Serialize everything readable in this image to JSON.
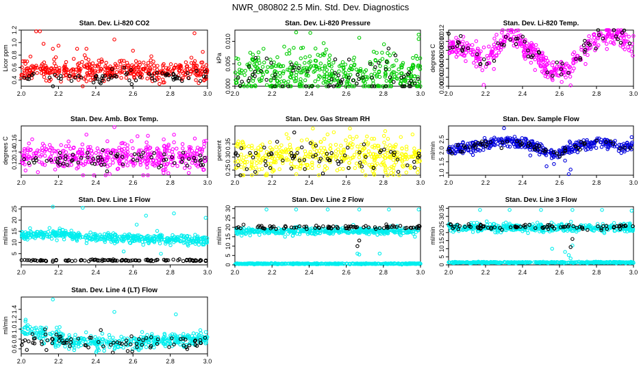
{
  "figure_title": "NWR_080802  2.5 Min. Std. Dev. Diagnostics",
  "chart_data": [
    {
      "id": "co2",
      "type": "scatter",
      "title": "Stan. Dev. Li-820 CO2",
      "xlabel": "",
      "ylabel": "Licor ppm",
      "xlim": [
        2.0,
        3.0
      ],
      "ylim": [
        0.3,
        1.2
      ],
      "xticks": [
        "2.0",
        "2.2",
        "2.4",
        "2.6",
        "2.8",
        "3.0"
      ],
      "yticks": [
        "0.4",
        "0.6",
        "0.8",
        "1.0",
        "1.2"
      ],
      "colors": {
        "main": "#ff0000",
        "secondary": "#000000"
      },
      "series": [
        {
          "name": "main",
          "color": "#ff0000",
          "n": 420,
          "level": 0.55,
          "spread": 0.08,
          "outliers": [
            [
              2.08,
              1.18
            ],
            [
              2.1,
              1.18
            ],
            [
              2.12,
              0.98
            ],
            [
              2.17,
              0.9
            ],
            [
              2.2,
              0.95
            ],
            [
              2.3,
              0.9
            ],
            [
              2.5,
              1.05
            ],
            [
              2.93,
              1.15
            ],
            [
              2.35,
              0.9
            ],
            [
              2.6,
              0.87
            ],
            [
              2.33,
              0.3
            ]
          ]
        },
        {
          "name": "secondary",
          "color": "#000000",
          "n": 70,
          "level": 0.45,
          "spread": 0.05,
          "outliers": []
        }
      ]
    },
    {
      "id": "pressure",
      "type": "scatter",
      "title": "Stan. Dev. Li-820 Pressure",
      "xlabel": "",
      "ylabel": "kPa",
      "xlim": [
        2.0,
        3.0
      ],
      "ylim": [
        0.0,
        0.0125
      ],
      "xticks": [
        "2.0",
        "2.2",
        "2.4",
        "2.6",
        "2.8",
        "3.0"
      ],
      "yticks": [
        "0.000",
        "0.005",
        "0.010"
      ],
      "colors": {
        "main": "#00cc00",
        "secondary": "#000000"
      },
      "series": [
        {
          "name": "main",
          "color": "#00cc00",
          "n": 420,
          "level": 0.003,
          "spread": 0.0025,
          "outliers": [
            [
              2.33,
              0.012
            ],
            [
              2.67,
              0.0108
            ],
            [
              2.99,
              0.0115
            ]
          ]
        },
        {
          "name": "secondary",
          "color": "#000000",
          "n": 70,
          "level": 0.002,
          "spread": 0.0025,
          "outliers": []
        }
      ]
    },
    {
      "id": "temp",
      "type": "scatter",
      "title": "Stan. Dev. Li-820 Temp.",
      "xlabel": "",
      "ylabel": "degrees C",
      "xlim": [
        2.0,
        3.0
      ],
      "ylim": [
        0.0,
        0.0125
      ],
      "xticks": [
        "2.0",
        "2.2",
        "2.4",
        "2.6",
        "2.8",
        "3.0"
      ],
      "yticks": [
        "0.000",
        "0.002",
        "0.004",
        "0.006",
        "0.008",
        "0.010",
        "0.012"
      ],
      "colors": {
        "main": "#ff00ff",
        "secondary": "#000000"
      },
      "series": [
        {
          "name": "main",
          "color": "#ff00ff",
          "n": 420,
          "level": 0.008,
          "spread": 0.0012,
          "wave": [
            [
              2.0,
              0.009
            ],
            [
              2.1,
              0.008
            ],
            [
              2.2,
              0.006
            ],
            [
              2.33,
              0.0115
            ],
            [
              2.45,
              0.008
            ],
            [
              2.55,
              0.003
            ],
            [
              2.65,
              0.004
            ],
            [
              2.75,
              0.009
            ],
            [
              2.85,
              0.0115
            ],
            [
              2.92,
              0.0115
            ],
            [
              3.0,
              0.009
            ]
          ],
          "outliers": [
            [
              2.19,
              0.0003
            ],
            [
              2.66,
              0.0002
            ]
          ]
        },
        {
          "name": "secondary",
          "color": "#000000",
          "n": 60,
          "level": 0.008,
          "spread": 0.0012,
          "wave": [
            [
              2.0,
              0.009
            ],
            [
              2.1,
              0.008
            ],
            [
              2.2,
              0.006
            ],
            [
              2.33,
              0.0115
            ],
            [
              2.45,
              0.008
            ],
            [
              2.55,
              0.003
            ],
            [
              2.65,
              0.004
            ],
            [
              2.75,
              0.009
            ],
            [
              2.85,
              0.0115
            ],
            [
              2.92,
              0.0115
            ],
            [
              3.0,
              0.009
            ]
          ],
          "outliers": []
        }
      ]
    },
    {
      "id": "boxtemp",
      "type": "scatter",
      "title": "Stan. Dev. Amb. Box Temp.",
      "xlabel": "",
      "ylabel": "degrees C",
      "xlim": [
        2.0,
        3.0
      ],
      "ylim": [
        0.1,
        0.185
      ],
      "xticks": [
        "2.0",
        "2.2",
        "2.4",
        "2.6",
        "2.8",
        "3.0"
      ],
      "yticks": [
        "0.12",
        "0.14",
        "0.16"
      ],
      "colors": {
        "main": "#ff00ff",
        "secondary": "#000000"
      },
      "series": [
        {
          "name": "main",
          "color": "#ff00ff",
          "n": 420,
          "level": 0.132,
          "spread": 0.012,
          "outliers": [
            [
              2.5,
              0.183
            ],
            [
              2.35,
              0.17
            ],
            [
              2.68,
              0.168
            ]
          ]
        },
        {
          "name": "secondary",
          "color": "#000000",
          "n": 70,
          "level": 0.128,
          "spread": 0.008,
          "outliers": []
        }
      ]
    },
    {
      "id": "rh",
      "type": "scatter",
      "title": "Stan. Dev. Gas Stream RH",
      "xlabel": "",
      "ylabel": "percent",
      "xlim": [
        2.0,
        3.0
      ],
      "ylim": [
        0.23,
        0.42
      ],
      "xticks": [
        "2.0",
        "2.2",
        "2.4",
        "2.6",
        "2.8",
        "3.0"
      ],
      "yticks": [
        "0.25",
        "0.30",
        "0.35"
      ],
      "colors": {
        "main": "#ffff00",
        "secondary": "#000000"
      },
      "series": [
        {
          "name": "main",
          "color": "#ffff00",
          "n": 420,
          "level": 0.3,
          "spread": 0.035,
          "outliers": [
            [
              2.42,
              0.41
            ],
            [
              2.62,
              0.41
            ],
            [
              2.81,
              0.4
            ]
          ]
        },
        {
          "name": "secondary",
          "color": "#000000",
          "n": 70,
          "level": 0.3,
          "spread": 0.03,
          "outliers": [
            [
              2.32,
              0.395
            ]
          ]
        }
      ]
    },
    {
      "id": "sampleflow",
      "type": "scatter",
      "title": "Stan. Dev. Sample Flow",
      "xlabel": "",
      "ylabel": "ml/min",
      "xlim": [
        2.0,
        3.0
      ],
      "ylim": [
        0.9,
        3.1
      ],
      "xticks": [
        "2.0",
        "2.2",
        "2.4",
        "2.6",
        "2.8",
        "3.0"
      ],
      "yticks": [
        "1.0",
        "1.5",
        "2.0",
        "2.5"
      ],
      "colors": {
        "main": "#0000dd",
        "secondary": "#000000"
      },
      "series": [
        {
          "name": "main",
          "color": "#0000dd",
          "n": 420,
          "level": 2.1,
          "spread": 0.12,
          "wave": [
            [
              2.0,
              2.0
            ],
            [
              2.15,
              2.2
            ],
            [
              2.3,
              2.45
            ],
            [
              2.42,
              2.3
            ],
            [
              2.5,
              2.05
            ],
            [
              2.58,
              1.85
            ],
            [
              2.65,
              2.05
            ],
            [
              2.75,
              2.35
            ],
            [
              2.85,
              2.3
            ],
            [
              2.95,
              2.15
            ],
            [
              3.0,
              2.2
            ]
          ],
          "outliers": [
            [
              2.3,
              3.0
            ],
            [
              2.53,
              1.3
            ],
            [
              2.57,
              1.4
            ],
            [
              2.65,
              0.95
            ],
            [
              2.66,
              1.15
            ],
            [
              2.63,
              1.55
            ],
            [
              2.99,
              2.6
            ]
          ]
        },
        {
          "name": "secondary",
          "color": "#000000",
          "n": 60,
          "level": 2.1,
          "spread": 0.1,
          "wave": [
            [
              2.0,
              2.0
            ],
            [
              2.15,
              2.2
            ],
            [
              2.3,
              2.45
            ],
            [
              2.42,
              2.3
            ],
            [
              2.5,
              2.05
            ],
            [
              2.58,
              1.85
            ],
            [
              2.65,
              2.05
            ],
            [
              2.75,
              2.35
            ],
            [
              2.85,
              2.3
            ],
            [
              2.95,
              2.15
            ],
            [
              3.0,
              2.2
            ]
          ],
          "outliers": []
        }
      ]
    },
    {
      "id": "line1",
      "type": "scatter",
      "title": "Stan. Dev. Line 1 Flow",
      "xlabel": "",
      "ylabel": "ml/min",
      "xlim": [
        2.0,
        3.0
      ],
      "ylim": [
        0,
        26
      ],
      "xticks": [
        "2.0",
        "2.2",
        "2.4",
        "2.6",
        "2.8",
        "3.0"
      ],
      "yticks": [
        "5",
        "10",
        "15",
        "20",
        "25"
      ],
      "colors": {
        "main": "#00eeee",
        "secondary": "#000000"
      },
      "series": [
        {
          "name": "main",
          "color": "#00eeee",
          "n": 460,
          "level": 12.5,
          "spread": 1.0,
          "wave": [
            [
              2.0,
              13
            ],
            [
              2.2,
              14
            ],
            [
              2.3,
              13
            ],
            [
              2.5,
              12
            ],
            [
              2.7,
              11.5
            ],
            [
              3.0,
              11
            ]
          ],
          "outliers": [
            [
              2.17,
              26
            ],
            [
              2.33,
              25.5
            ],
            [
              2.67,
              22
            ],
            [
              2.82,
              23
            ],
            [
              2.99,
              21
            ],
            [
              2.55,
              6
            ],
            [
              2.62,
              18
            ],
            [
              2.75,
              5
            ]
          ]
        },
        {
          "name": "secondary",
          "color": "#000000",
          "n": 110,
          "level": 2.0,
          "spread": 0.2,
          "outliers": []
        }
      ]
    },
    {
      "id": "line2",
      "type": "scatter",
      "title": "Stan. Dev. Line 2 Flow",
      "xlabel": "",
      "ylabel": "ml/min",
      "xlim": [
        2.0,
        3.0
      ],
      "ylim": [
        0,
        31
      ],
      "xticks": [
        "2.0",
        "2.2",
        "2.4",
        "2.6",
        "2.8",
        "3.0"
      ],
      "yticks": [
        "0",
        "5",
        "10",
        "15",
        "20",
        "25",
        "30"
      ],
      "colors": {
        "main": "#00eeee",
        "secondary": "#000000"
      },
      "series": [
        {
          "name": "main",
          "color": "#00eeee",
          "n": 420,
          "level": 18,
          "spread": 0.8,
          "outliers": [
            [
              2.17,
              29.5
            ],
            [
              2.33,
              29.5
            ],
            [
              2.5,
              29.5
            ],
            [
              2.67,
              29.5
            ],
            [
              2.83,
              29.5
            ],
            [
              2.99,
              29.5
            ],
            [
              2.27,
              15
            ],
            [
              2.66,
              6
            ],
            [
              2.67,
              5.5
            ],
            [
              2.78,
              6
            ],
            [
              2.97,
              15
            ]
          ]
        },
        {
          "name": "base",
          "color": "#00eeee",
          "n": 420,
          "level": 0.6,
          "spread": 0.15,
          "outliers": []
        },
        {
          "name": "secondary",
          "color": "#000000",
          "n": 80,
          "level": 20,
          "spread": 0.6,
          "outliers": [
            [
              2.66,
              10
            ],
            [
              2.67,
              13
            ]
          ]
        }
      ]
    },
    {
      "id": "line3",
      "type": "scatter",
      "title": "Stan. Dev. Line 3 Flow",
      "xlabel": "",
      "ylabel": "ml/min",
      "xlim": [
        2.0,
        3.0
      ],
      "ylim": [
        0,
        36
      ],
      "xticks": [
        "2.0",
        "2.2",
        "2.4",
        "2.6",
        "2.8",
        "3.0"
      ],
      "yticks": [
        "0",
        "5",
        "10",
        "15",
        "20",
        "25",
        "30",
        "35"
      ],
      "colors": {
        "main": "#00eeee",
        "secondary": "#000000"
      },
      "series": [
        {
          "name": "main",
          "color": "#00eeee",
          "n": 420,
          "level": 23,
          "spread": 1.2,
          "outliers": [
            [
              2.17,
              34
            ],
            [
              2.33,
              34
            ],
            [
              2.5,
              34
            ],
            [
              2.67,
              34
            ],
            [
              2.83,
              34
            ],
            [
              2.99,
              33.5
            ],
            [
              2.56,
              10
            ],
            [
              2.63,
              8
            ],
            [
              2.65,
              6
            ],
            [
              2.67,
              12
            ],
            [
              2.66,
              4
            ]
          ]
        },
        {
          "name": "base",
          "color": "#00eeee",
          "n": 420,
          "level": 1.5,
          "spread": 0.2,
          "outliers": []
        },
        {
          "name": "secondary",
          "color": "#000000",
          "n": 80,
          "level": 23.5,
          "spread": 0.8,
          "outliers": [
            [
              2.66,
              11
            ],
            [
              2.67,
              16
            ]
          ]
        }
      ]
    },
    {
      "id": "line4",
      "type": "scatter",
      "title": "Stan. Dev. Line 4 (LT) Flow",
      "xlabel": "",
      "ylabel": "ml/min",
      "xlim": [
        2.0,
        3.0
      ],
      "ylim": [
        0.5,
        1.65
      ],
      "xticks": [
        "2.0",
        "2.2",
        "2.4",
        "2.6",
        "2.8",
        "3.0"
      ],
      "yticks": [
        "0.6",
        "0.8",
        "1.0",
        "1.2",
        "1.4"
      ],
      "colors": {
        "main": "#00eeee",
        "secondary": "#000000"
      },
      "series": [
        {
          "name": "main",
          "color": "#00eeee",
          "n": 420,
          "level": 0.75,
          "spread": 0.08,
          "wave": [
            [
              2.0,
              1.0
            ],
            [
              2.08,
              0.95
            ],
            [
              2.15,
              0.82
            ],
            [
              2.3,
              0.75
            ],
            [
              2.5,
              0.72
            ],
            [
              2.7,
              0.75
            ],
            [
              2.9,
              0.8
            ],
            [
              3.0,
              0.85
            ]
          ],
          "outliers": [
            [
              2.17,
              1.6
            ],
            [
              2.5,
              1.35
            ],
            [
              2.83,
              1.3
            ]
          ]
        },
        {
          "name": "secondary",
          "color": "#000000",
          "n": 80,
          "level": 0.72,
          "spread": 0.09,
          "wave": [
            [
              2.0,
              0.85
            ],
            [
              2.1,
              0.8
            ],
            [
              2.3,
              0.72
            ],
            [
              2.6,
              0.7
            ],
            [
              3.0,
              0.75
            ]
          ],
          "outliers": [
            [
              2.03,
              0.58
            ]
          ]
        }
      ]
    }
  ]
}
